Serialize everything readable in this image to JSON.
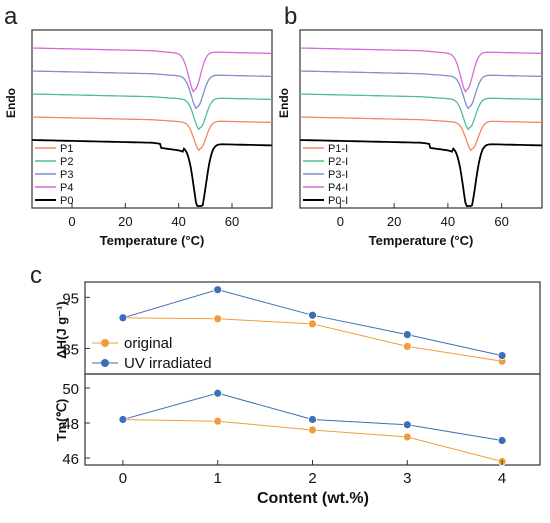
{
  "chart_data": [
    {
      "panel": "a",
      "type": "line",
      "endo_label": "Endo",
      "xlabel": "Temperature (°C)",
      "xlim": [
        -15,
        75
      ],
      "xticks": [
        0,
        20,
        40,
        60
      ],
      "legend_position": "bottom-left",
      "peak_temperatures": [
        48,
        48,
        47,
        46,
        48
      ],
      "series": [
        {
          "name": "P1",
          "color": "#f08a5d",
          "peak_c": 48
        },
        {
          "name": "P2",
          "color": "#4fbf8f",
          "peak_c": 48
        },
        {
          "name": "P3",
          "color": "#7f8fd0",
          "peak_c": 47
        },
        {
          "name": "P4",
          "color": "#d86ad8",
          "peak_c": 46
        },
        {
          "name": "P0",
          "color": "#000000",
          "peak_c": 48
        }
      ]
    },
    {
      "panel": "b",
      "type": "line",
      "endo_label": "Endo",
      "xlabel": "Temperature (°C)",
      "xlim": [
        -15,
        75
      ],
      "xticks": [
        0,
        20,
        40,
        60
      ],
      "legend_position": "bottom-left",
      "series": [
        {
          "name": "P1-I",
          "color": "#f08a5d",
          "peak_c": 49
        },
        {
          "name": "P2-I",
          "color": "#4fbf8f",
          "peak_c": 48
        },
        {
          "name": "P3-I",
          "color": "#7f8fd0",
          "peak_c": 48
        },
        {
          "name": "P4-I",
          "color": "#d86ad8",
          "peak_c": 47
        },
        {
          "name": "P0-I",
          "color": "#000000",
          "peak_c": 48
        }
      ]
    },
    {
      "panel": "c",
      "type": "line",
      "xlabel": "Content (wt.%)",
      "x": [
        0,
        1,
        2,
        3,
        4
      ],
      "xlim": [
        -0.4,
        4.4
      ],
      "legend_position": "middle-left",
      "subplots": [
        {
          "ylabel": "ΔH(J g⁻¹)",
          "ylim": [
            80,
            98
          ],
          "yticks": [
            85,
            95
          ],
          "series": [
            {
              "name": "original",
              "color": "#f39b3a",
              "values": [
                91.0,
                90.8,
                89.8,
                85.4,
                82.5
              ]
            },
            {
              "name": "UV irradiated",
              "color": "#3b6fb6",
              "values": [
                91.0,
                96.5,
                91.5,
                87.7,
                83.6
              ]
            }
          ]
        },
        {
          "ylabel": "Tm(℃)",
          "ylim": [
            45.6,
            50.8
          ],
          "yticks": [
            46,
            48,
            50
          ],
          "series": [
            {
              "name": "original",
              "color": "#f39b3a",
              "values": [
                48.2,
                48.1,
                47.6,
                47.2,
                45.8
              ]
            },
            {
              "name": "UV irradiated",
              "color": "#3b6fb6",
              "values": [
                48.2,
                49.7,
                48.2,
                47.9,
                47.0
              ]
            }
          ]
        }
      ]
    }
  ]
}
